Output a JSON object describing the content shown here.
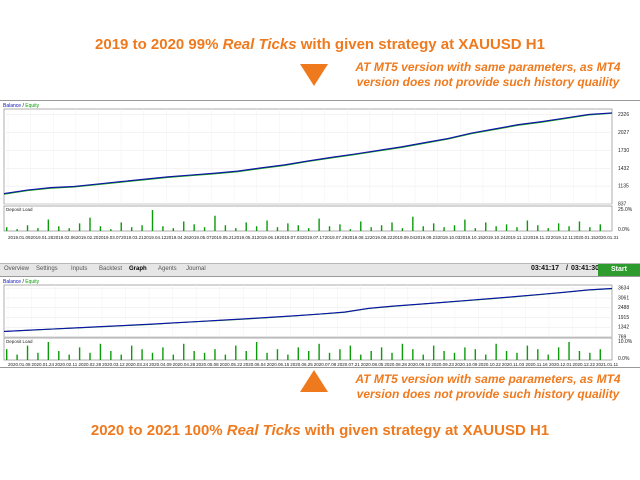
{
  "headline_top": {
    "prefix": "2019 to 2020 99% ",
    "italic": "Real Ticks",
    "suffix": " with given strategy at XAUUSD H1"
  },
  "note_top": {
    "line1": "AT MT5 version with same parameters, as MT4",
    "line2": "version does not provide such history quaility"
  },
  "headline_bottom": {
    "prefix": "2020 to 2021 100% ",
    "italic": "Real Ticks",
    "suffix": " with given strategy at XAUUSD H1"
  },
  "note_bottom": {
    "line1": "AT MT5 version with same parameters, as MT4",
    "line2": "version does not provide such history quaility"
  },
  "legend": {
    "balance": "Balance",
    "sep": " / ",
    "equity": "Equity"
  },
  "deposit_label": "Deposit Load",
  "colors": {
    "accent": "#ef7a1e",
    "balance": "#1010b0",
    "equity": "#0a9a0a",
    "start": "#2e9b2e"
  },
  "tabs": [
    "Overview",
    "Settings",
    "Inputs",
    "Backtest",
    "Graph",
    "Agents",
    "Journal"
  ],
  "active_tab": "Graph",
  "timer_elapsed": "03:41:17",
  "timer_sep": "/",
  "timer_total": "03:41:30",
  "start_label": "Start",
  "chart_data": [
    {
      "type": "line",
      "yticks": [
        "2326",
        "2027",
        "1730",
        "1432",
        "1135",
        "837"
      ],
      "ylim": [
        837,
        2420
      ],
      "load_ticks": [
        "25.0%",
        "0.0%"
      ],
      "x": [
        "2019.01.09",
        "2019.01.28",
        "2019.02.06",
        "2019.02.20",
        "2019.03.07",
        "2019.03.21",
        "2019.04.12",
        "2019.04.26",
        "2019.05.07",
        "2019.05.21",
        "2019.05.31",
        "2019.06.19",
        "2019.07.03",
        "2019.07.17",
        "2019.07.29",
        "2019.08.12",
        "2019.08.22",
        "2019.09.04",
        "2019.09.23",
        "2019.10.03",
        "2019.10.15",
        "2019.10.24",
        "2019.11.12",
        "2019.11.22",
        "2019.12.11",
        "2020.01.15",
        "2020.01.31"
      ],
      "series": [
        {
          "name": "Balance",
          "values": [
            1010,
            1070,
            1110,
            1130,
            1170,
            1210,
            1250,
            1290,
            1320,
            1350,
            1385,
            1440,
            1490,
            1555,
            1615,
            1670,
            1730,
            1790,
            1860,
            1930,
            2020,
            2090,
            2160,
            2210,
            2270,
            2330,
            2355
          ]
        },
        {
          "name": "Equity",
          "values": [
            1000,
            1060,
            1100,
            1120,
            1160,
            1200,
            1240,
            1280,
            1310,
            1340,
            1375,
            1430,
            1480,
            1545,
            1605,
            1660,
            1720,
            1780,
            1850,
            1920,
            2010,
            2080,
            2150,
            2200,
            2260,
            2320,
            2350
          ]
        }
      ],
      "deposit_load": [
        4,
        2,
        6,
        3,
        12,
        5,
        3,
        8,
        14,
        5,
        2,
        9,
        4,
        6,
        22,
        5,
        3,
        10,
        7,
        4,
        16,
        6,
        3,
        9,
        5,
        11,
        4,
        8,
        6,
        3,
        13,
        5,
        7,
        2,
        10,
        4,
        6,
        9,
        3,
        15,
        5,
        8,
        4,
        6,
        12,
        3,
        9,
        5,
        7,
        4,
        11,
        6,
        3,
        8,
        5,
        10,
        4,
        7
      ]
    },
    {
      "type": "line",
      "yticks": [
        "3634",
        "3061",
        "2488",
        "1915",
        "1342",
        "769"
      ],
      "ylim": [
        769,
        3820
      ],
      "load_ticks": [
        "10.0%",
        "0.0%"
      ],
      "x": [
        "2020.01.08",
        "2020.01.24",
        "2020.02.11",
        "2020.02.28",
        "2020.03.12",
        "2020.03.24",
        "2020.04.09",
        "2020.04.28",
        "2020.05.08",
        "2020.05.22",
        "2020.06.04",
        "2020.06.15",
        "2020.06.25",
        "2020.07.08",
        "2020.07.21",
        "2020.08.05",
        "2020.08.28",
        "2020.09.10",
        "2020.09.23",
        "2020.10.09",
        "2020.10.22",
        "2020.11.03",
        "2020.11.16",
        "2020.12.01",
        "2020.12.22",
        "2021.01.11"
      ],
      "series": [
        {
          "name": "Balance",
          "values": [
            1100,
            1170,
            1240,
            1310,
            1380,
            1450,
            1520,
            1600,
            1680,
            1760,
            1840,
            1930,
            2020,
            2120,
            2230,
            2450,
            2580,
            2690,
            2800,
            2910,
            3020,
            3140,
            3260,
            3390,
            3530,
            3620
          ]
        },
        {
          "name": "Equity",
          "values": [
            1090,
            1160,
            1230,
            1300,
            1370,
            1440,
            1510,
            1590,
            1670,
            1750,
            1830,
            1920,
            2010,
            2110,
            2220,
            2440,
            2570,
            2680,
            2790,
            2900,
            3010,
            3130,
            3250,
            3380,
            3520,
            3600
          ]
        }
      ],
      "deposit_load": [
        6,
        3,
        8,
        4,
        10,
        5,
        3,
        7,
        4,
        9,
        5,
        3,
        8,
        6,
        4,
        7,
        3,
        9,
        5,
        4,
        6,
        3,
        8,
        5,
        10,
        4,
        6,
        3,
        7,
        5,
        9,
        4,
        6,
        8,
        3,
        5,
        7,
        4,
        9,
        6,
        3,
        8,
        5,
        4,
        7,
        6,
        3,
        9,
        5,
        4,
        8,
        6,
        3,
        7,
        10,
        5,
        4,
        6
      ]
    }
  ]
}
